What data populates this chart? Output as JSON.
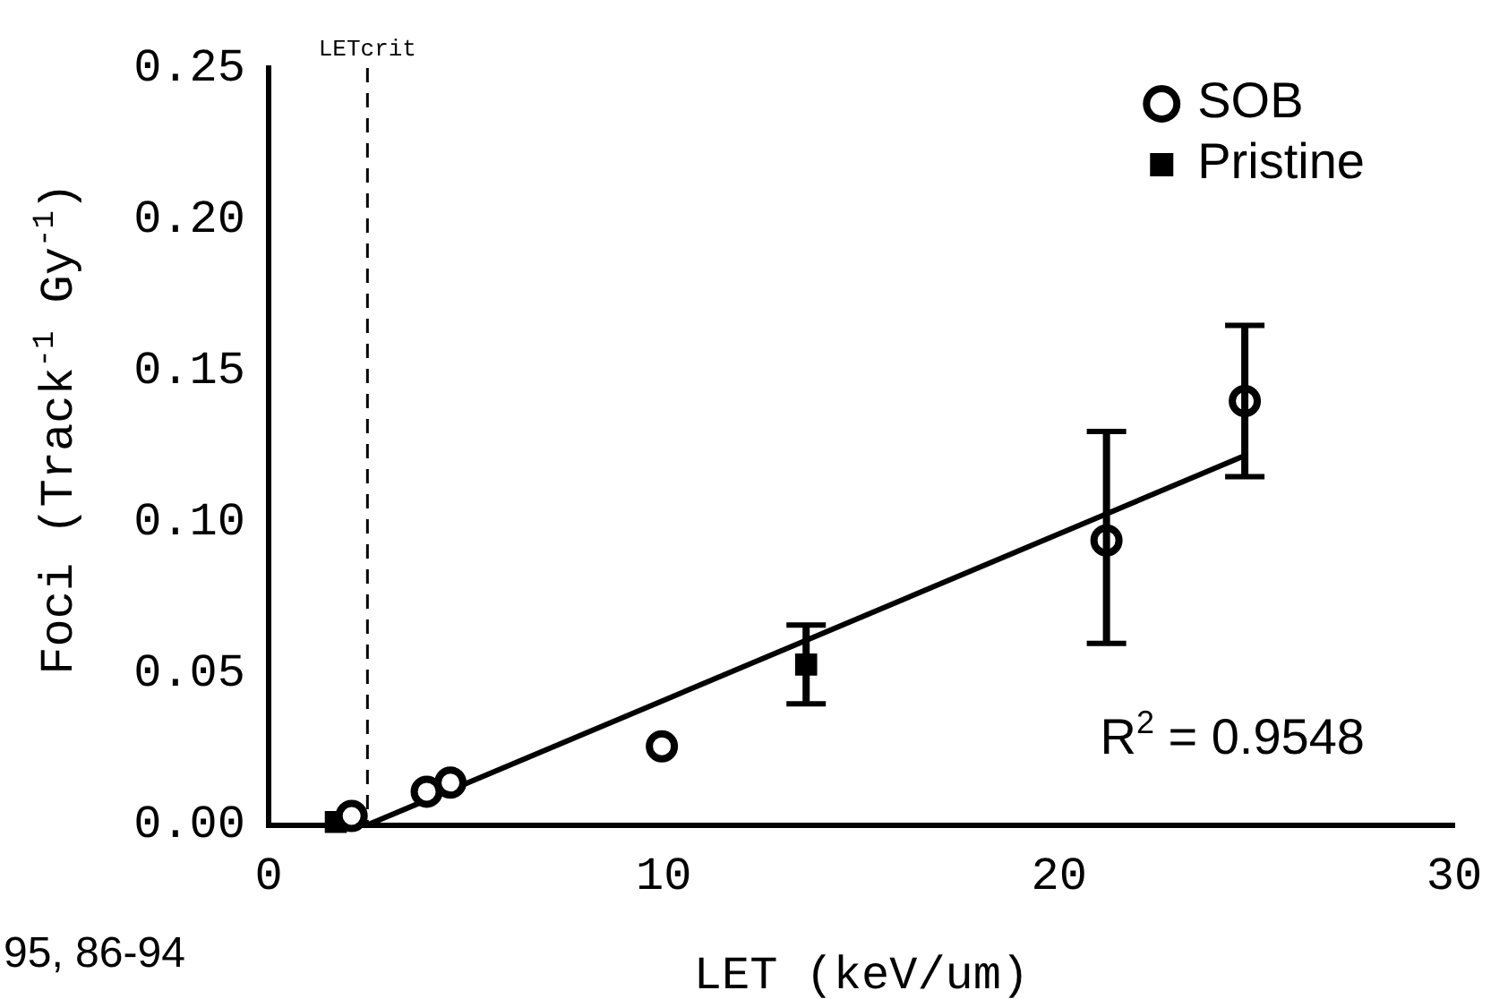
{
  "chart_data": {
    "type": "scatter",
    "xlabel": "LET (keV/um)",
    "ylabel": "Foci (Track$^{-1}$ Gy$^{-1}$)",
    "xlim": [
      0,
      30
    ],
    "xticks": [
      0,
      10,
      20,
      30
    ],
    "ylim": [
      0,
      0.25
    ],
    "yticks": [
      {
        "value": 0,
        "label": "0.00"
      },
      {
        "value": 0.05,
        "label": "0.05"
      },
      {
        "value": 0.1,
        "label": "0.10"
      },
      {
        "value": 0.15,
        "label": "0.15"
      },
      {
        "value": 0.2,
        "label": "0.20"
      },
      {
        "value": 0.25,
        "label": "0.25"
      }
    ],
    "grid": false,
    "legend": "top right",
    "series": [
      {
        "name": "SOB",
        "color": "#000000",
        "marker": "circle",
        "x": [
          2.1,
          4.0,
          4.6,
          9.95,
          21.2,
          24.7
        ],
        "values": [
          0.003,
          0.011,
          0.014,
          0.026,
          0.094,
          0.14
        ],
        "errors": [
          null,
          null,
          null,
          null,
          [
            0.06,
            0.13
          ],
          [
            0.115,
            0.165
          ]
        ]
      },
      {
        "name": "Pristine",
        "color": "#000000",
        "marker": "square",
        "x": [
          1.7,
          13.6
        ],
        "values": [
          0.001,
          0.053
        ],
        "errors": [
          null,
          [
            0.04,
            0.066
          ]
        ]
      },
      {
        "type": "line",
        "color": "#000000",
        "marker": "none",
        "line_style": "solid",
        "x": [
          2.5,
          24.7
        ],
        "values": [
          0,
          0.122
        ]
      }
    ],
    "ref_lines": [
      {
        "axis": "x",
        "value": 2.5,
        "label": "LETcrit",
        "line_style": "dashed",
        "color": "#000000"
      }
    ],
    "annotations": [
      "R$^{2}$ = 0.9548",
      "95, 86-94"
    ]
  }
}
